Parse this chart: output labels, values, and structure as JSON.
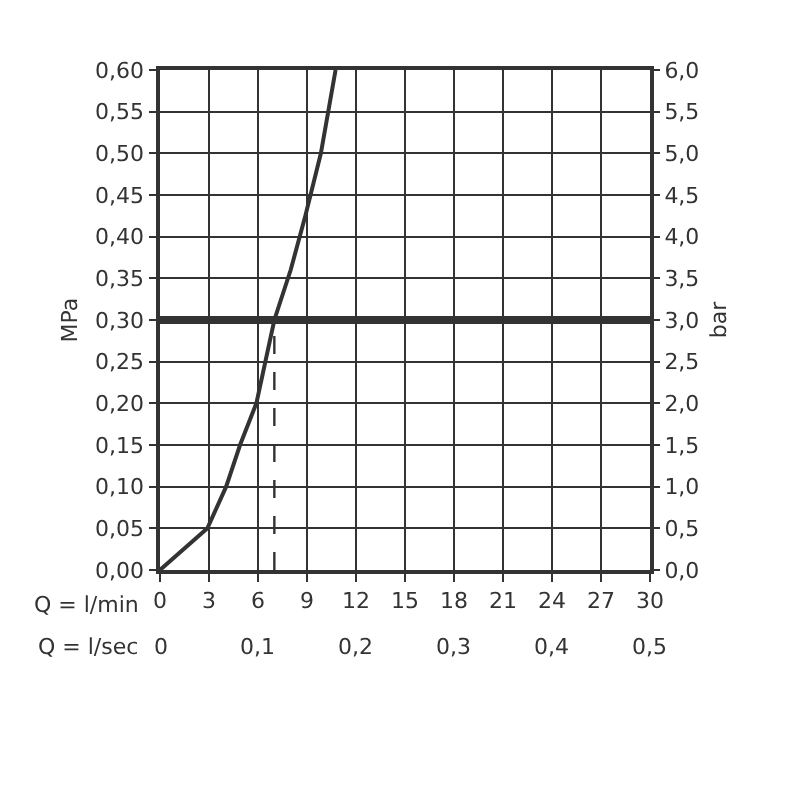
{
  "chart_data": {
    "type": "line",
    "xlabel": "Q = l/min",
    "x2label": "Q = l/sec",
    "ylabel": "MPa",
    "y2label": "bar",
    "series": [
      {
        "color": "#333333",
        "x": [
          0,
          2.9,
          4.05,
          4.9,
          5.9,
          7.0,
          8.0,
          8.9,
          9.85,
          10.75
        ],
        "values": [
          0,
          0.05,
          0.1,
          0.15,
          0.2,
          0.3,
          0.36,
          0.425,
          0.5,
          0.6
        ],
        "line_style": "solid"
      },
      {
        "color": "#333333",
        "x": [
          7.0,
          7.0
        ],
        "values": [
          0,
          0.3
        ],
        "line_style": "dashed"
      }
    ],
    "ref_lines": [
      {
        "axis": "y",
        "value": 0.3,
        "color": "#333333"
      }
    ],
    "xlim": [
      0,
      30
    ],
    "xticks": [
      0,
      3,
      6,
      9,
      12,
      15,
      18,
      21,
      24,
      27,
      30
    ],
    "x2lim": [
      0,
      0.5
    ],
    "x2ticks": [
      0,
      {
        "value": 0.1,
        "label": "0,1"
      },
      {
        "value": 0.2,
        "label": "0,2"
      },
      {
        "value": 0.3,
        "label": "0,3"
      },
      {
        "value": 0.4,
        "label": "0,4"
      },
      {
        "value": 0.5,
        "label": "0,5"
      }
    ],
    "ylim": [
      0,
      0.6
    ],
    "yticks": [
      {
        "value": 0,
        "label": "0,00"
      },
      {
        "value": 0.05,
        "label": "0,05"
      },
      {
        "value": 0.1,
        "label": "0,10"
      },
      {
        "value": 0.15,
        "label": "0,15"
      },
      {
        "value": 0.2,
        "label": "0,20"
      },
      {
        "value": 0.25,
        "label": "0,25"
      },
      {
        "value": 0.3,
        "label": "0,30"
      },
      {
        "value": 0.35,
        "label": "0,35"
      },
      {
        "value": 0.4,
        "label": "0,40"
      },
      {
        "value": 0.45,
        "label": "0,45"
      },
      {
        "value": 0.5,
        "label": "0,50"
      },
      {
        "value": 0.55,
        "label": "0,55"
      },
      {
        "value": 0.6,
        "label": "0,60"
      }
    ],
    "y2lim": [
      0,
      6
    ],
    "y2ticks": [
      {
        "value": 0,
        "label": "0,0"
      },
      {
        "value": 0.5,
        "label": "0,5"
      },
      {
        "value": 1,
        "label": "1,0"
      },
      {
        "value": 1.5,
        "label": "1,5"
      },
      {
        "value": 2,
        "label": "2,0"
      },
      {
        "value": 2.5,
        "label": "2,5"
      },
      {
        "value": 3,
        "label": "3,0"
      },
      {
        "value": 3.5,
        "label": "3,5"
      },
      {
        "value": 4,
        "label": "4,0"
      },
      {
        "value": 4.5,
        "label": "4,5"
      },
      {
        "value": 5,
        "label": "5,0"
      },
      {
        "value": 5.5,
        "label": "5,5"
      },
      {
        "value": 6,
        "label": "6,0"
      }
    ],
    "grid": true,
    "marker": "none"
  }
}
